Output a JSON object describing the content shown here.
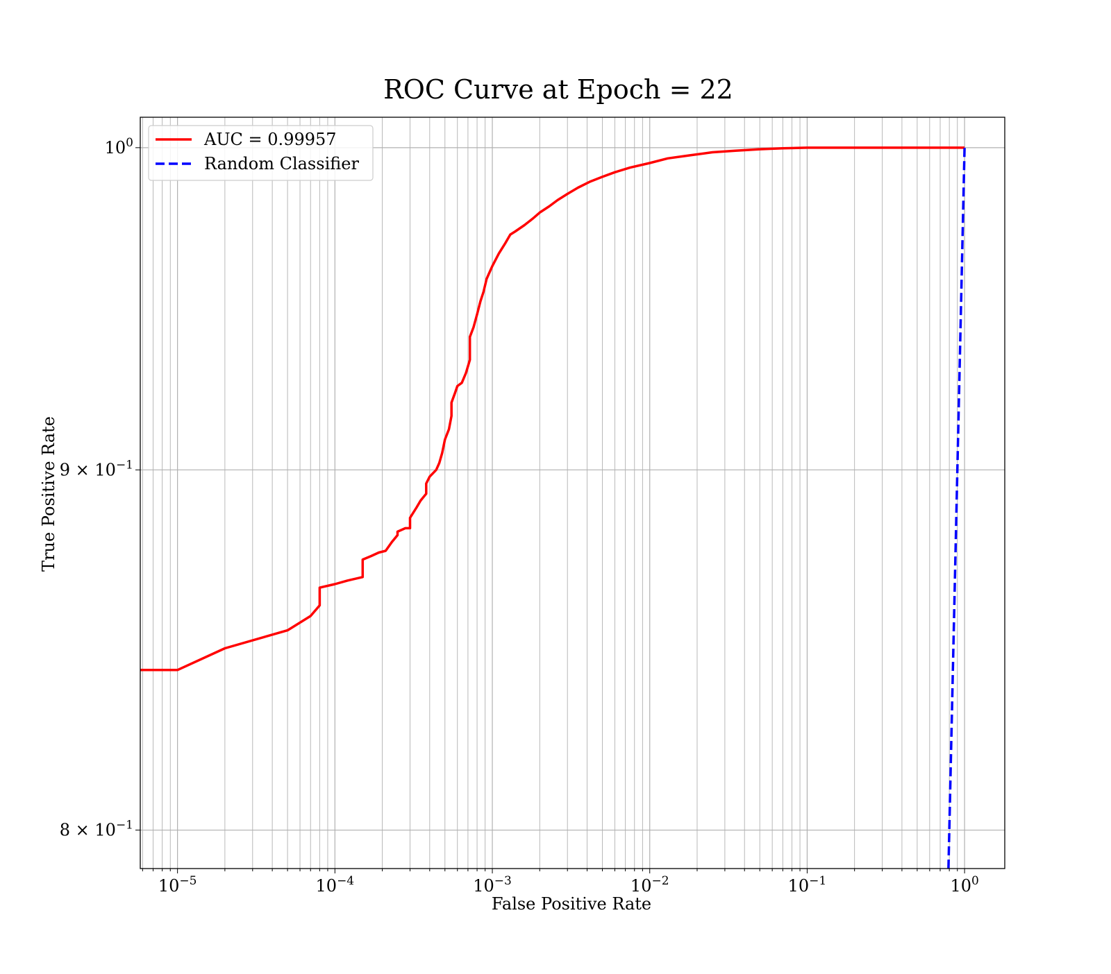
{
  "chart_data": {
    "type": "line",
    "title": "ROC Curve at Epoch = 22",
    "xlabel": "False Positive Rate",
    "ylabel": "True Positive Rate",
    "xscale": "log",
    "yscale": "log",
    "xlim": [
      5.8e-06,
      1.8
    ],
    "ylim": [
      0.79,
      1.01
    ],
    "grid": true,
    "legend_position": "upper-left",
    "xticks": [
      {
        "value": 1e-05,
        "base": "10",
        "exp": "−5"
      },
      {
        "value": 0.0001,
        "base": "10",
        "exp": "−4"
      },
      {
        "value": 0.001,
        "base": "10",
        "exp": "−3"
      },
      {
        "value": 0.01,
        "base": "10",
        "exp": "−2"
      },
      {
        "value": 0.1,
        "base": "10",
        "exp": "−1"
      },
      {
        "value": 1,
        "base": "10",
        "exp": "0"
      }
    ],
    "yticks": [
      {
        "value": 0.8,
        "prefix": "8 × ",
        "base": "10",
        "exp": "−1"
      },
      {
        "value": 0.9,
        "prefix": "9 × ",
        "base": "10",
        "exp": "−1"
      },
      {
        "value": 1.0,
        "prefix": "",
        "base": "10",
        "exp": "0"
      }
    ],
    "series": [
      {
        "name": "AUC = 0.99957",
        "color": "#ff0000",
        "style": "solid",
        "x": [
          5.8e-06,
          1e-05,
          2e-05,
          5e-05,
          7e-05,
          8e-05,
          8e-05,
          0.0001,
          0.00012,
          0.00015,
          0.00015,
          0.00017,
          0.00019,
          0.00021,
          0.00023,
          0.00025,
          0.00025,
          0.00028,
          0.0003,
          0.0003,
          0.00033,
          0.00035,
          0.00038,
          0.00038,
          0.0004,
          0.00044,
          0.00046,
          0.00048,
          0.0005,
          0.00053,
          0.00055,
          0.00055,
          0.00058,
          0.0006,
          0.00064,
          0.00068,
          0.00072,
          0.00072,
          0.00076,
          0.0008,
          0.00084,
          0.00088,
          0.00092,
          0.001,
          0.0011,
          0.0012,
          0.0013,
          0.0014,
          0.0016,
          0.0018,
          0.002,
          0.0023,
          0.0026,
          0.003,
          0.0035,
          0.0042,
          0.005,
          0.006,
          0.0075,
          0.01,
          0.013,
          0.018,
          0.025,
          0.035,
          0.05,
          0.07,
          0.1,
          0.13,
          0.17,
          0.3,
          0.6,
          1.0
        ],
        "y": [
          0.843,
          0.843,
          0.849,
          0.854,
          0.858,
          0.861,
          0.866,
          0.867,
          0.868,
          0.869,
          0.874,
          0.875,
          0.876,
          0.8765,
          0.879,
          0.881,
          0.882,
          0.883,
          0.883,
          0.886,
          0.889,
          0.891,
          0.893,
          0.896,
          0.898,
          0.9,
          0.902,
          0.905,
          0.909,
          0.912,
          0.916,
          0.92,
          0.923,
          0.925,
          0.926,
          0.929,
          0.933,
          0.94,
          0.943,
          0.947,
          0.951,
          0.954,
          0.958,
          0.962,
          0.966,
          0.969,
          0.972,
          0.973,
          0.975,
          0.977,
          0.979,
          0.981,
          0.983,
          0.985,
          0.987,
          0.989,
          0.9905,
          0.992,
          0.9935,
          0.995,
          0.9965,
          0.9975,
          0.9985,
          0.999,
          0.9995,
          0.9998,
          1.0,
          1.0,
          1.0,
          1.0,
          1.0,
          1.0
        ]
      },
      {
        "name": "Random Classifier",
        "color": "#0000ff",
        "style": "dashed",
        "x": [
          0.79,
          1.0
        ],
        "y": [
          0.79,
          1.0
        ]
      }
    ]
  }
}
